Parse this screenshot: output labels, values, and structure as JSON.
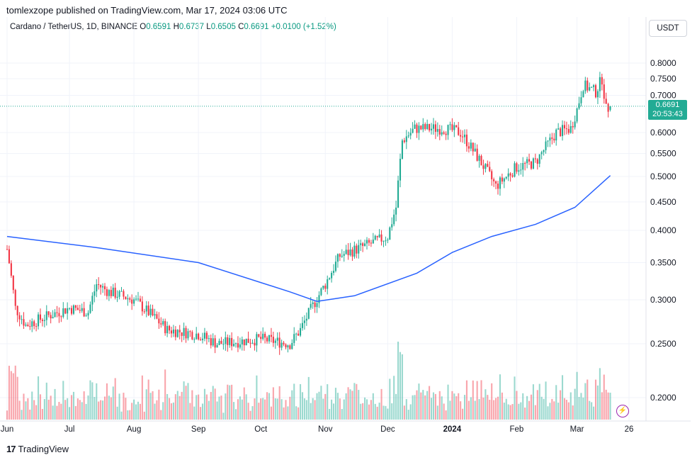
{
  "header": {
    "publish_line": "tomlexzope published on TradingView.com, Mar 17, 2024 03:06 UTC"
  },
  "legend": {
    "symbol": "Cardano / TetherUS, 1D, BINANCE",
    "open_label": "O",
    "open": "0.6591",
    "high_label": "H",
    "high": "0.6737",
    "low_label": "L",
    "low": "0.6505",
    "close_label": "C",
    "close": "0.6691",
    "change": "+0.0100 (+1.52%)"
  },
  "axis": {
    "currency": "USDT",
    "price_tag_value": "0.6691",
    "price_tag_countdown": "20:53:43"
  },
  "footer": {
    "brand": "TradingView"
  },
  "colors": {
    "up": "#22ab94",
    "down": "#f23645",
    "ma": "#2962ff",
    "grid": "#f0f3fa"
  },
  "icons": {
    "brand_logo": "tradingview-logo-icon",
    "flash": "lightning-bolt-icon"
  },
  "chart_data": {
    "type": "candlestick",
    "y_scale": "log",
    "ylim": [
      0.168,
      0.83
    ],
    "y_ticks": [
      "0.8000",
      "0.7500",
      "0.7000",
      "0.6000",
      "0.5500",
      "0.5000",
      "0.4500",
      "0.4000",
      "0.3500",
      "0.3000",
      "0.2500",
      "0.2000"
    ],
    "x_ticks": [
      "Jun",
      "Jul",
      "Aug",
      "Sep",
      "Oct",
      "Nov",
      "Dec",
      "2024",
      "Feb",
      "Mar",
      "26"
    ],
    "x_range": [
      "2023-06-01",
      "2024-03-26"
    ],
    "last_price": 0.6691,
    "moving_average_anchors": [
      [
        "2023-06-01",
        0.39
      ],
      [
        "2023-07-15",
        0.372
      ],
      [
        "2023-09-01",
        0.35
      ],
      [
        "2023-10-15",
        0.31
      ],
      [
        "2023-10-28",
        0.298
      ],
      [
        "2023-11-15",
        0.305
      ],
      [
        "2023-12-15",
        0.335
      ],
      [
        "2024-01-01",
        0.365
      ],
      [
        "2024-01-20",
        0.39
      ],
      [
        "2024-02-10",
        0.41
      ],
      [
        "2024-02-29",
        0.44
      ],
      [
        "2024-03-17",
        0.502
      ]
    ],
    "close_path_anchors": [
      [
        "2023-06-01",
        0.37
      ],
      [
        "2023-06-05",
        0.29
      ],
      [
        "2023-06-10",
        0.27
      ],
      [
        "2023-06-20",
        0.28
      ],
      [
        "2023-07-01",
        0.29
      ],
      [
        "2023-07-10",
        0.285
      ],
      [
        "2023-07-14",
        0.32
      ],
      [
        "2023-07-20",
        0.31
      ],
      [
        "2023-08-01",
        0.3
      ],
      [
        "2023-08-17",
        0.265
      ],
      [
        "2023-09-01",
        0.26
      ],
      [
        "2023-09-10",
        0.25
      ],
      [
        "2023-10-01",
        0.255
      ],
      [
        "2023-10-15",
        0.25
      ],
      [
        "2023-10-20",
        0.265
      ],
      [
        "2023-11-01",
        0.32
      ],
      [
        "2023-11-08",
        0.36
      ],
      [
        "2023-11-20",
        0.375
      ],
      [
        "2023-12-01",
        0.39
      ],
      [
        "2023-12-05",
        0.44
      ],
      [
        "2023-12-08",
        0.58
      ],
      [
        "2023-12-14",
        0.61
      ],
      [
        "2023-12-28",
        0.61
      ],
      [
        "2024-01-05",
        0.6
      ],
      [
        "2024-01-12",
        0.55
      ],
      [
        "2024-01-22",
        0.48
      ],
      [
        "2024-02-01",
        0.52
      ],
      [
        "2024-02-10",
        0.53
      ],
      [
        "2024-02-20",
        0.6
      ],
      [
        "2024-02-27",
        0.61
      ],
      [
        "2024-03-01",
        0.66
      ],
      [
        "2024-03-04",
        0.73
      ],
      [
        "2024-03-10",
        0.71
      ],
      [
        "2024-03-13",
        0.75
      ],
      [
        "2024-03-15",
        0.66
      ],
      [
        "2024-03-17",
        0.6691
      ]
    ]
  }
}
